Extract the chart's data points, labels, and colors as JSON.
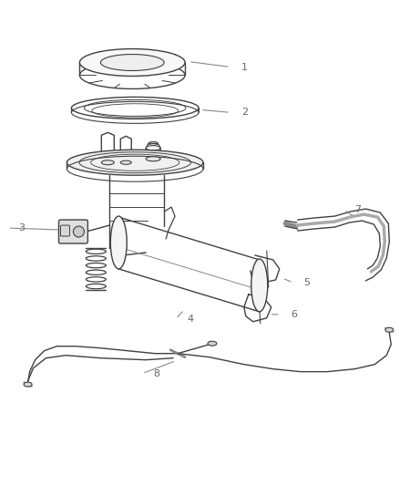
{
  "background_color": "#ffffff",
  "line_color": "#404040",
  "label_color": "#666666",
  "fig_width": 4.38,
  "fig_height": 5.33,
  "dpi": 100
}
